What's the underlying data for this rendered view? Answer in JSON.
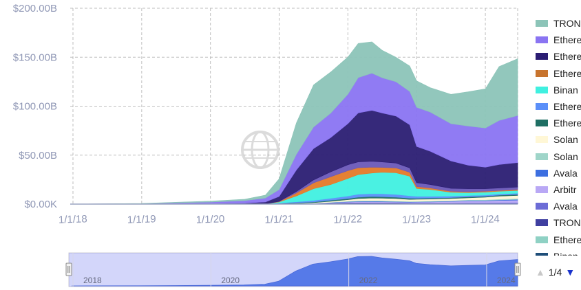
{
  "chart_data": {
    "type": "area",
    "stacked": true,
    "y_tick_labels": [
      "$0.00K",
      "$50.00B",
      "$100.00B",
      "$150.00B",
      "$200.00B"
    ],
    "y_ticks": [
      0,
      50,
      100,
      150,
      200
    ],
    "ylim": [
      0,
      200
    ],
    "x_tick_labels": [
      "1/1/18",
      "1/1/19",
      "1/1/20",
      "1/1/21",
      "1/1/22",
      "1/1/23",
      "1/1/24"
    ],
    "x_ticks": [
      2018.0,
      2019.0,
      2020.0,
      2021.0,
      2022.0,
      2023.0,
      2024.0
    ],
    "xlim": [
      2017.96,
      2024.47
    ],
    "grid": true,
    "legend_position": "right",
    "x": [
      2018.0,
      2019.0,
      2019.5,
      2020.0,
      2020.5,
      2020.8,
      2021.0,
      2021.25,
      2021.5,
      2021.75,
      2022.0,
      2022.15,
      2022.35,
      2022.5,
      2022.7,
      2022.9,
      2023.0,
      2023.2,
      2023.5,
      2023.75,
      2024.0,
      2024.2,
      2024.47
    ],
    "series": [
      {
        "name": "Binan",
        "color": "#1f4e79",
        "values": [
          0,
          0,
          0,
          0,
          0,
          0,
          0,
          0,
          0,
          0,
          0,
          0,
          0,
          0,
          0,
          0,
          0,
          0,
          0,
          0,
          0,
          0,
          0
        ]
      },
      {
        "name": "Ethere",
        "color": "#8fd1c4",
        "values": [
          0,
          0,
          0,
          0,
          0,
          0,
          0,
          0,
          0,
          0,
          0,
          0,
          0,
          0,
          0,
          0,
          0,
          0,
          0,
          0,
          0,
          0,
          0
        ]
      },
      {
        "name": "TRON",
        "color": "#3f3fa0",
        "values": [
          0,
          0,
          0,
          0,
          0,
          0,
          0.3,
          0.6,
          0.8,
          1,
          1.2,
          1.2,
          1.2,
          1.2,
          1.2,
          1,
          1,
          1,
          1,
          1,
          1,
          1,
          1
        ]
      },
      {
        "name": "Avala",
        "color": "#6c6cd6",
        "values": [
          0,
          0,
          0,
          0,
          0,
          0,
          0,
          0,
          0,
          0.2,
          0.3,
          0.4,
          0.3,
          0.3,
          0.2,
          0.2,
          0.2,
          0.2,
          0.2,
          0.3,
          0.3,
          0.4,
          0.5
        ]
      },
      {
        "name": "Arbitr",
        "color": "#b9a8f5",
        "values": [
          0,
          0,
          0,
          0,
          0,
          0,
          0,
          0,
          0,
          0.3,
          0.6,
          0.8,
          0.9,
          0.8,
          0.7,
          0.7,
          0.8,
          1,
          1.5,
          2,
          2,
          2.3,
          2.5
        ]
      },
      {
        "name": "Avala",
        "color": "#3d6fe0",
        "values": [
          0,
          0,
          0,
          0,
          0,
          0,
          0,
          0,
          0,
          0.2,
          0.4,
          0.5,
          0.6,
          0.6,
          0.5,
          0.4,
          0.4,
          0.4,
          0.4,
          0.5,
          0.5,
          0.6,
          0.8
        ]
      },
      {
        "name": "Solan",
        "color": "#9fd5c9",
        "values": [
          0,
          0,
          0,
          0,
          0,
          0,
          0,
          0,
          0,
          0.2,
          0.5,
          0.7,
          0.7,
          0.6,
          0.5,
          0.5,
          0.5,
          0.5,
          0.5,
          0.6,
          0.7,
          0.8,
          1
        ]
      },
      {
        "name": "Solan",
        "color": "#fff7d6",
        "values": [
          0,
          0,
          0,
          0,
          0,
          0,
          0,
          0.2,
          0.6,
          1,
          1.5,
          2,
          2.5,
          2.5,
          2.5,
          2,
          2,
          2,
          2,
          2,
          2.5,
          3,
          3
        ]
      },
      {
        "name": "Ethere",
        "color": "#1f6f64",
        "values": [
          0,
          0,
          0,
          0,
          0,
          0,
          0.3,
          0.5,
          0.8,
          1,
          1.2,
          1.5,
          1.5,
          1.5,
          1.5,
          1.2,
          1,
          1,
          1,
          1,
          1,
          1,
          1
        ]
      },
      {
        "name": "Ethere",
        "color": "#5b8ff9",
        "values": [
          0,
          0,
          0,
          0,
          0,
          0,
          0.5,
          1,
          1.5,
          2,
          2.5,
          3,
          3,
          3,
          2.8,
          2.5,
          2,
          1.8,
          1.5,
          1.3,
          1.2,
          1.2,
          1.3
        ]
      },
      {
        "name": "Binan",
        "color": "#40f0e0",
        "values": [
          0,
          0,
          0,
          0,
          0,
          0.2,
          1,
          6,
          12,
          14,
          18,
          20,
          21,
          22,
          22,
          20,
          8,
          7,
          4,
          3,
          3,
          2.8,
          2.8
        ]
      },
      {
        "name": "Ethere",
        "color": "#e37a28",
        "values": [
          0,
          0,
          0,
          0,
          0,
          0,
          0.5,
          3,
          6,
          8,
          8,
          7,
          6,
          5,
          5,
          4,
          2,
          1.5,
          1,
          1,
          1,
          0.8,
          1
        ]
      },
      {
        "name": "Ethere",
        "color": "#6a58b8",
        "values": [
          0,
          0,
          0,
          0,
          0,
          0,
          0.2,
          1.5,
          3,
          5,
          6,
          6,
          6,
          5.5,
          5,
          4.5,
          4,
          3.5,
          3,
          3,
          2.5,
          2.5,
          2.5
        ]
      },
      {
        "name": "Ethere",
        "color": "#2b1d73",
        "values": [
          0,
          0,
          0.3,
          0.5,
          1,
          2,
          5,
          22,
          32,
          35,
          42,
          50,
          52,
          50,
          48,
          44,
          37,
          34,
          28,
          24,
          22,
          24,
          25
        ]
      },
      {
        "name": "Ethere",
        "color": "#8a74f2",
        "values": [
          0,
          0.5,
          1,
          1.5,
          2.5,
          4,
          7,
          16,
          22,
          25,
          30,
          36,
          38,
          36,
          35,
          34,
          40,
          40,
          38,
          40,
          40,
          45,
          48
        ]
      },
      {
        "name": "TRON",
        "color": "#8cc4b8",
        "values": [
          0,
          0.2,
          0.6,
          1,
          1.5,
          3,
          11,
          32,
          43,
          42,
          38,
          35,
          32,
          28,
          25,
          26,
          27,
          25,
          30,
          35,
          40,
          55,
          58
        ]
      }
    ]
  },
  "legend": {
    "items": [
      {
        "label": "TRON",
        "color": "#8cc4b8"
      },
      {
        "label": "Ethere",
        "color": "#8a74f2"
      },
      {
        "label": "Ethere",
        "color": "#2b1d73"
      },
      {
        "label": "Ethere",
        "color": "#c8742e"
      },
      {
        "label": "Binan",
        "color": "#40f0e0"
      },
      {
        "label": "Ethere",
        "color": "#5b8ff9"
      },
      {
        "label": "Ethere",
        "color": "#1f6f64"
      },
      {
        "label": "Solan",
        "color": "#fff7d6"
      },
      {
        "label": "Solan",
        "color": "#9fd5c9"
      },
      {
        "label": "Avala",
        "color": "#3d6fe0"
      },
      {
        "label": "Arbitr",
        "color": "#b9a8f5"
      },
      {
        "label": "Avala",
        "color": "#6c6cd6"
      },
      {
        "label": "TRON",
        "color": "#3f3fa0"
      },
      {
        "label": "Ethere",
        "color": "#8fd1c4"
      },
      {
        "label": "Binan",
        "color": "#1f4e79"
      }
    ],
    "page": "1/4"
  },
  "navigator": {
    "year_labels": [
      "2018",
      "2020",
      "2022",
      "2024"
    ],
    "year_values": [
      2018.05,
      2020.05,
      2022.05,
      2024.05
    ],
    "selection": [
      2017.96,
      2024.47
    ]
  }
}
